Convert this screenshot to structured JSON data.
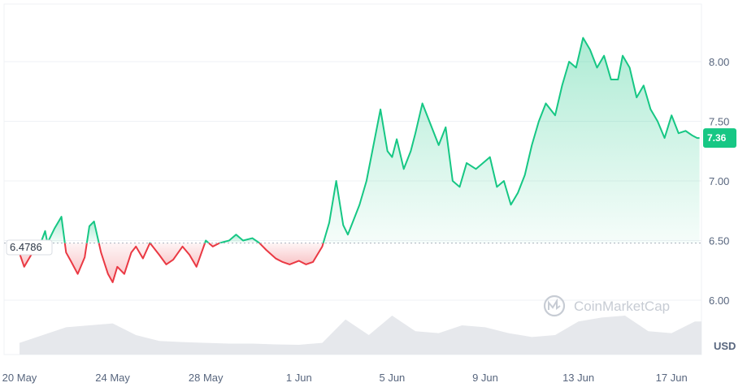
{
  "chart_data": {
    "type": "line",
    "baseline": 6.4786,
    "baseline_label": "6.4786",
    "current_value": 7.36,
    "current_label": "7.36",
    "unit_label": "USD",
    "watermark": "CoinMarketCap",
    "ylim": [
      5.6,
      8.4
    ],
    "y_ticks": [
      {
        "value": 8.0,
        "label": "8.00"
      },
      {
        "value": 7.5,
        "label": "7.50"
      },
      {
        "value": 7.0,
        "label": "7.00"
      },
      {
        "value": 6.5,
        "label": "6.50"
      },
      {
        "value": 6.0,
        "label": "6.00"
      }
    ],
    "x_ticks": [
      {
        "label": "20 May",
        "day": 0
      },
      {
        "label": "24 May",
        "day": 4
      },
      {
        "label": "28 May",
        "day": 8
      },
      {
        "label": "1 Jun",
        "day": 12
      },
      {
        "label": "5 Jun",
        "day": 16
      },
      {
        "label": "9 Jun",
        "day": 20
      },
      {
        "label": "13 Jun",
        "day": 24
      },
      {
        "label": "17 Jun",
        "day": 28
      }
    ],
    "grid": true,
    "colors": {
      "up": "#16c784",
      "down": "#ea3943",
      "grid": "#eff2f5",
      "volume": "#e6e8ec"
    },
    "price": {
      "x": [
        -0.1,
        0.2,
        0.5,
        0.8,
        1.1,
        1.2,
        1.5,
        1.8,
        2.0,
        2.2,
        2.5,
        2.8,
        3.0,
        3.2,
        3.5,
        3.8,
        4.0,
        4.2,
        4.5,
        4.8,
        5.0,
        5.3,
        5.6,
        6.0,
        6.3,
        6.6,
        7.0,
        7.3,
        7.6,
        8.0,
        8.3,
        8.6,
        9.0,
        9.3,
        9.6,
        10.0,
        10.3,
        10.6,
        11.0,
        11.3,
        11.6,
        12.0,
        12.3,
        12.6,
        13.0,
        13.3,
        13.6,
        13.9,
        14.1,
        14.3,
        14.6,
        14.9,
        15.2,
        15.5,
        15.8,
        16.0,
        16.2,
        16.5,
        16.8,
        17.0,
        17.3,
        17.6,
        18.0,
        18.3,
        18.6,
        18.9,
        19.2,
        19.6,
        19.9,
        20.2,
        20.5,
        20.8,
        21.1,
        21.4,
        21.7,
        22.0,
        22.3,
        22.6,
        23.0,
        23.3,
        23.6,
        23.9,
        24.2,
        24.5,
        24.8,
        25.1,
        25.4,
        25.7,
        25.9,
        26.2,
        26.5,
        26.8,
        27.1,
        27.4,
        27.7,
        28.0,
        28.3,
        28.6,
        28.9,
        29.1,
        29.2
      ],
      "y": [
        6.45,
        6.28,
        6.38,
        6.42,
        6.58,
        6.48,
        6.6,
        6.7,
        6.4,
        6.33,
        6.22,
        6.36,
        6.62,
        6.66,
        6.4,
        6.22,
        6.15,
        6.28,
        6.22,
        6.4,
        6.45,
        6.35,
        6.48,
        6.38,
        6.3,
        6.34,
        6.45,
        6.38,
        6.28,
        6.5,
        6.45,
        6.48,
        6.5,
        6.55,
        6.5,
        6.52,
        6.48,
        6.42,
        6.35,
        6.32,
        6.3,
        6.33,
        6.3,
        6.32,
        6.45,
        6.65,
        7.0,
        6.63,
        6.55,
        6.65,
        6.8,
        7.0,
        7.3,
        7.6,
        7.25,
        7.2,
        7.35,
        7.1,
        7.25,
        7.4,
        7.65,
        7.5,
        7.3,
        7.45,
        7.0,
        6.95,
        7.15,
        7.1,
        7.15,
        7.2,
        6.95,
        7.0,
        6.8,
        6.9,
        7.05,
        7.3,
        7.5,
        7.65,
        7.55,
        7.8,
        8.0,
        7.95,
        8.2,
        8.1,
        7.95,
        8.05,
        7.85,
        7.85,
        8.05,
        7.95,
        7.7,
        7.8,
        7.6,
        7.5,
        7.36,
        7.55,
        7.4,
        7.42,
        7.38,
        7.36,
        7.36
      ]
    },
    "volume": {
      "x": [
        0,
        1,
        2,
        3,
        4,
        5,
        6,
        7,
        8,
        9,
        10,
        11,
        12,
        13,
        14,
        15,
        16,
        17,
        18,
        19,
        20,
        21,
        22,
        23,
        24,
        25,
        26,
        27,
        28,
        29
      ],
      "y": [
        0.3,
        0.5,
        0.7,
        0.75,
        0.8,
        0.5,
        0.35,
        0.32,
        0.3,
        0.28,
        0.28,
        0.26,
        0.25,
        0.3,
        0.9,
        0.5,
        1.0,
        0.6,
        0.55,
        0.75,
        0.7,
        0.55,
        0.45,
        0.5,
        0.85,
        0.95,
        1.0,
        0.6,
        0.55,
        0.85
      ]
    }
  }
}
